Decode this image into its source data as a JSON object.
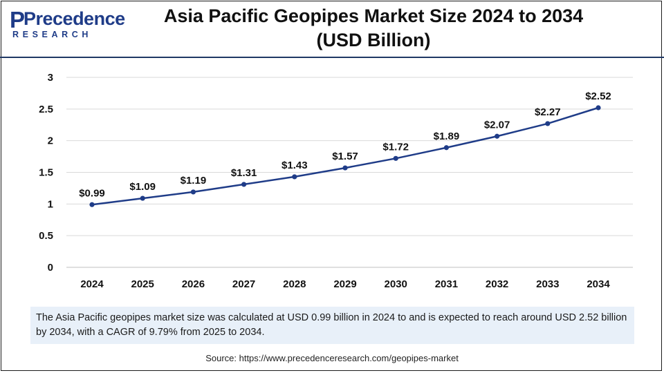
{
  "header": {
    "logo_brand": "Precedence",
    "logo_sub": "RESEARCH",
    "title_line1": "Asia Pacific Geopipes Market Size 2024 to 2034",
    "title_line2": "(USD Billion)"
  },
  "chart_data": {
    "type": "line",
    "title": "Asia Pacific Geopipes Market Size 2024 to 2034 (USD Billion)",
    "x": [
      "2024",
      "2025",
      "2026",
      "2027",
      "2028",
      "2029",
      "2030",
      "2031",
      "2032",
      "2033",
      "2034"
    ],
    "series": [
      {
        "values": [
          0.99,
          1.09,
          1.19,
          1.31,
          1.43,
          1.57,
          1.72,
          1.89,
          2.07,
          2.27,
          2.52
        ],
        "labels": [
          "$0.99",
          "$1.09",
          "$1.19",
          "$1.31",
          "$1.43",
          "$1.57",
          "$1.72",
          "$1.89",
          "$2.07",
          "$2.27",
          "$2.52"
        ]
      }
    ],
    "yticks": [
      "0",
      "0.5",
      "1",
      "1.5",
      "2",
      "2.5",
      "3"
    ],
    "ylim": [
      0,
      3
    ],
    "grid": true,
    "xlabel": "",
    "ylabel": "",
    "line_color": "#1f3c88"
  },
  "description": "The Asia Pacific geopipes market size was calculated at USD 0.99 billion in 2024 to and is expected to reach around USD 2.52 billion by 2034, with a CAGR of 9.79% from 2025 to 2034.",
  "source": "Source: https://www.precedenceresearch.com/geopipes-market"
}
